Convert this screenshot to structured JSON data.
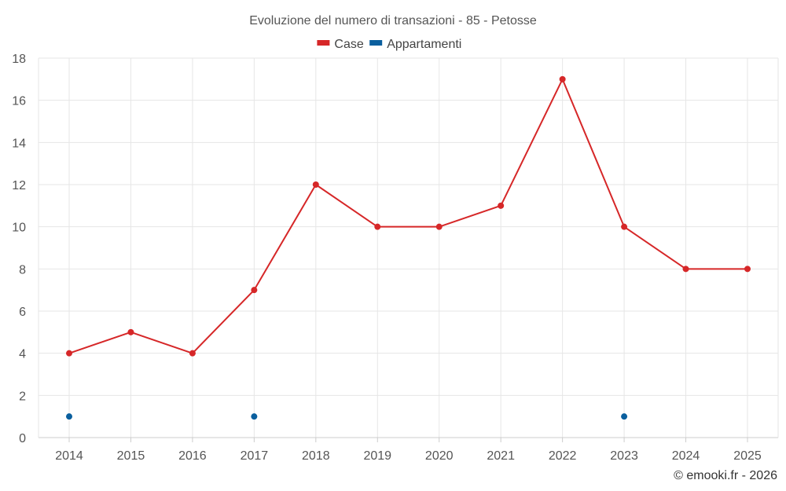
{
  "chart_data": {
    "type": "line",
    "title": "Evoluzione del numero di transazioni - 85 - Petosse",
    "xlabel": "",
    "ylabel": "",
    "categories": [
      "2014",
      "2015",
      "2016",
      "2017",
      "2018",
      "2019",
      "2020",
      "2021",
      "2022",
      "2023",
      "2024",
      "2025"
    ],
    "ylim": [
      0,
      18
    ],
    "yticks": [
      0,
      2,
      4,
      6,
      8,
      10,
      12,
      14,
      16,
      18
    ],
    "grid": true,
    "legend_position": "top-center",
    "series": [
      {
        "name": "Case",
        "color": "#d62728",
        "values": [
          4,
          5,
          4,
          7,
          12,
          10,
          10,
          11,
          17,
          10,
          8,
          8
        ]
      },
      {
        "name": "Appartamenti",
        "color": "#0a5f9e",
        "values": [
          1,
          null,
          null,
          1,
          null,
          null,
          null,
          null,
          null,
          1,
          null,
          null
        ]
      }
    ],
    "credit": "© emooki.fr - 2026"
  }
}
